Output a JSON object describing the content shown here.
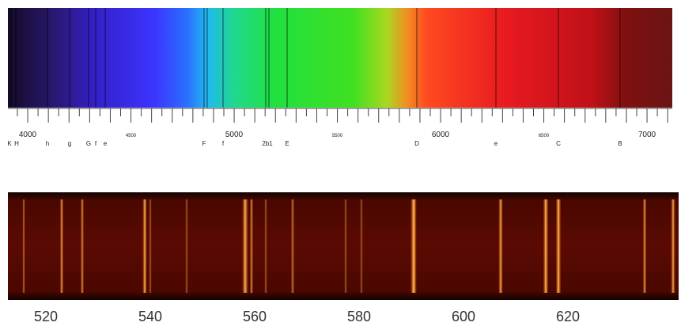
{
  "solar_spectrum": {
    "scale_labels": [
      "4000",
      "4500",
      "5000",
      "5500",
      "6000",
      "6500",
      "7000"
    ],
    "line_labels": [
      "K",
      "H",
      "h",
      "g",
      "G",
      "f",
      "e",
      "F",
      "f",
      "2b1",
      "E",
      "D",
      "e",
      "C",
      "B"
    ]
  },
  "emission_spectrum": {
    "axis_labels": [
      "520",
      "540",
      "560",
      "580",
      "600",
      "620"
    ]
  }
}
